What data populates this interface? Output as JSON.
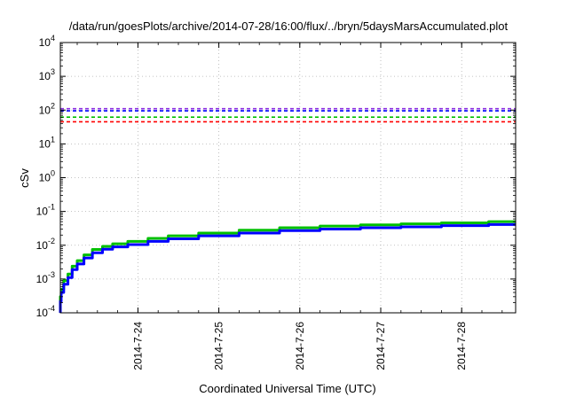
{
  "chart_data": {
    "type": "line",
    "title": "/data/run/goesPlots/archive/2014-07-28/16:00/flux/../bryn/5daysMarsAccumulated.plot",
    "xlabel": "Coordinated Universal Time (UTC)",
    "ylabel": "cSv",
    "y_scale": "log",
    "ylim": [
      0.0001,
      10000
    ],
    "y_ticks": [
      {
        "value": 0.0001,
        "base": "10",
        "exp": "-4"
      },
      {
        "value": 0.001,
        "base": "10",
        "exp": "-3"
      },
      {
        "value": 0.01,
        "base": "10",
        "exp": "-2"
      },
      {
        "value": 0.1,
        "base": "10",
        "exp": "-1"
      },
      {
        "value": 1,
        "base": "10",
        "exp": "0"
      },
      {
        "value": 10,
        "base": "10",
        "exp": "1"
      },
      {
        "value": 100,
        "base": "10",
        "exp": "2"
      },
      {
        "value": 1000,
        "base": "10",
        "exp": "3"
      },
      {
        "value": 10000,
        "base": "10",
        "exp": "4"
      }
    ],
    "xlim": [
      "2014-07-23 01:00",
      "2014-07-28 16:00"
    ],
    "x_ticks": [
      {
        "value": "2014-07-24 00:00",
        "label": "2014-7-24"
      },
      {
        "value": "2014-07-25 00:00",
        "label": "2014-7-25"
      },
      {
        "value": "2014-07-26 00:00",
        "label": "2014-7-26"
      },
      {
        "value": "2014-07-27 00:00",
        "label": "2014-7-27"
      },
      {
        "value": "2014-07-28 00:00",
        "label": "2014-7-28"
      }
    ],
    "grid": true,
    "reference_lines": [
      {
        "y": 110,
        "color": "#8a2be2",
        "style": "dashed"
      },
      {
        "y": 95,
        "color": "#0000ff",
        "style": "dashed"
      },
      {
        "y": 62,
        "color": "#00c000",
        "style": "dashed"
      },
      {
        "y": 45,
        "color": "#ff0000",
        "style": "dashed"
      }
    ],
    "series": [
      {
        "color": "#00c000",
        "x": [
          "2014-07-23 01:00",
          "2014-07-23 01:30",
          "2014-07-23 02:30",
          "2014-07-23 04:00",
          "2014-07-23 05:00",
          "2014-07-23 07:00",
          "2014-07-23 09:00",
          "2014-07-23 12:00",
          "2014-07-23 15:00",
          "2014-07-23 18:00",
          "2014-07-24 00:00",
          "2014-07-24 06:00",
          "2014-07-24 12:00",
          "2014-07-25 00:00",
          "2014-07-25 12:00",
          "2014-07-26 00:00",
          "2014-07-26 12:00",
          "2014-07-27 00:00",
          "2014-07-27 12:00",
          "2014-07-28 00:00",
          "2014-07-28 16:00"
        ],
        "y": [
          0.0003,
          0.0005,
          0.0009,
          0.0014,
          0.0024,
          0.0035,
          0.0052,
          0.0075,
          0.0093,
          0.011,
          0.013,
          0.016,
          0.019,
          0.023,
          0.028,
          0.033,
          0.037,
          0.04,
          0.043,
          0.046,
          0.05
        ]
      },
      {
        "color": "#0000ff",
        "x": [
          "2014-07-23 01:00",
          "2014-07-23 01:30",
          "2014-07-23 02:30",
          "2014-07-23 04:00",
          "2014-07-23 05:00",
          "2014-07-23 07:00",
          "2014-07-23 09:00",
          "2014-07-23 12:00",
          "2014-07-23 15:00",
          "2014-07-23 18:00",
          "2014-07-24 00:00",
          "2014-07-24 06:00",
          "2014-07-24 12:00",
          "2014-07-25 00:00",
          "2014-07-25 12:00",
          "2014-07-26 00:00",
          "2014-07-26 12:00",
          "2014-07-27 00:00",
          "2014-07-27 12:00",
          "2014-07-28 00:00",
          "2014-07-28 16:00"
        ],
        "y": [
          0.00022,
          0.0004,
          0.0007,
          0.0011,
          0.0019,
          0.0028,
          0.0042,
          0.006,
          0.0076,
          0.0089,
          0.0105,
          0.013,
          0.0155,
          0.019,
          0.023,
          0.027,
          0.03,
          0.033,
          0.035,
          0.038,
          0.041
        ]
      }
    ]
  }
}
